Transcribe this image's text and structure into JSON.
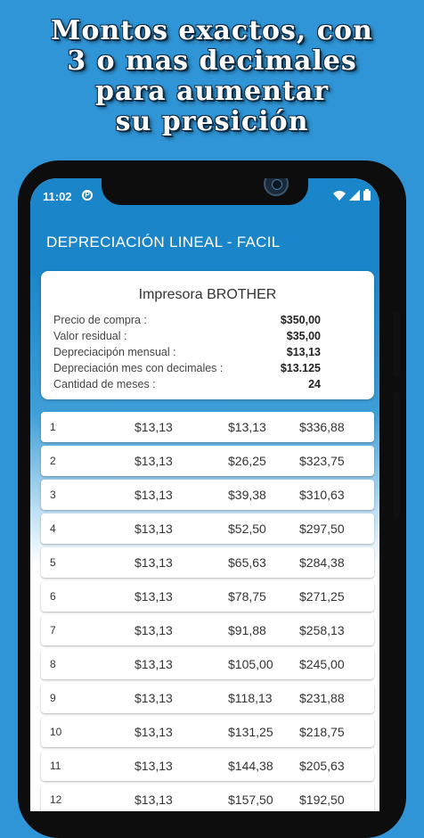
{
  "promo": {
    "lines": [
      "Montos exactos, con",
      "3 o mas decimales",
      "para aumentar",
      "su presición"
    ]
  },
  "status": {
    "time": "11:02",
    "p_icon": "P"
  },
  "app": {
    "title": "DEPRECIACIÓN LINEAL - FACIL"
  },
  "summary": {
    "title": "Impresora BROTHER",
    "rows": [
      {
        "label": "Precio de compra :",
        "value": "$350,00"
      },
      {
        "label": "Valor residual :",
        "value": "$35,00"
      },
      {
        "label": "Depreciacipón mensual :",
        "value": "$13,13"
      },
      {
        "label": "Depreciación mes con decimales :",
        "value": "$13.125"
      },
      {
        "label": "Cantidad de meses :",
        "value": "24"
      }
    ]
  },
  "table": [
    [
      "1",
      "$13,13",
      "$13,13",
      "$336,88"
    ],
    [
      "2",
      "$13,13",
      "$26,25",
      "$323,75"
    ],
    [
      "3",
      "$13,13",
      "$39,38",
      "$310,63"
    ],
    [
      "4",
      "$13,13",
      "$52,50",
      "$297,50"
    ],
    [
      "5",
      "$13,13",
      "$65,63",
      "$284,38"
    ],
    [
      "6",
      "$13,13",
      "$78,75",
      "$271,25"
    ],
    [
      "7",
      "$13,13",
      "$91,88",
      "$258,13"
    ],
    [
      "8",
      "$13,13",
      "$105,00",
      "$245,00"
    ],
    [
      "9",
      "$13,13",
      "$118,13",
      "$231,88"
    ],
    [
      "10",
      "$13,13",
      "$131,25",
      "$218,75"
    ],
    [
      "11",
      "$13,13",
      "$144,38",
      "$205,63"
    ],
    [
      "12",
      "$13,13",
      "$157,50",
      "$192,50"
    ]
  ],
  "colors": {
    "background": "#2f95d6",
    "appbar": "#1a86c9"
  },
  "icons": [
    "wifi-icon",
    "signal-icon",
    "battery-icon",
    "camera-icon"
  ]
}
